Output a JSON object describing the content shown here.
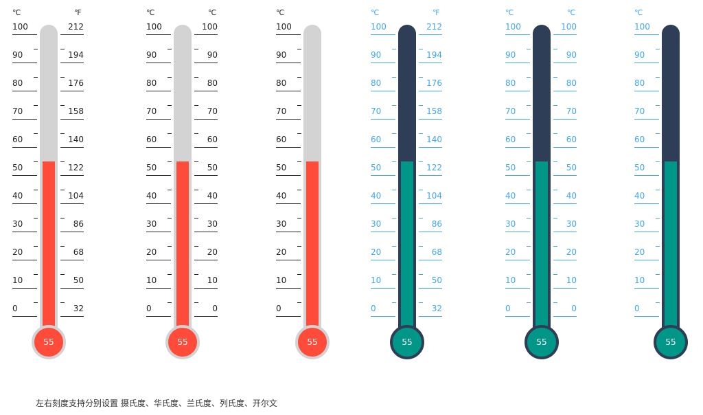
{
  "caption": "左右刻度支持分别设置 摄氏度、华氏度、兰氏度、列氏度、开尔文",
  "thermometers": [
    {
      "value": "55",
      "level_fraction": 0.55,
      "theme": "red",
      "left_unit": "℃",
      "right_unit": "℉",
      "left_ticks": [
        "100",
        "90",
        "80",
        "70",
        "60",
        "50",
        "40",
        "30",
        "20",
        "10",
        "0"
      ],
      "right_ticks": [
        "212",
        "194",
        "176",
        "158",
        "140",
        "122",
        "104",
        "86",
        "68",
        "50",
        "32"
      ]
    },
    {
      "value": "55",
      "level_fraction": 0.55,
      "theme": "red",
      "left_unit": "℃",
      "right_unit": "℃",
      "left_ticks": [
        "100",
        "90",
        "80",
        "70",
        "60",
        "50",
        "40",
        "30",
        "20",
        "10",
        "0"
      ],
      "right_ticks": [
        "100",
        "90",
        "80",
        "70",
        "60",
        "50",
        "40",
        "30",
        "20",
        "10",
        "0"
      ]
    },
    {
      "value": "55",
      "level_fraction": 0.55,
      "theme": "red",
      "left_unit": "℃",
      "right_unit": "",
      "left_ticks": [
        "100",
        "90",
        "80",
        "70",
        "60",
        "50",
        "40",
        "30",
        "20",
        "10",
        "0"
      ],
      "right_ticks": []
    },
    {
      "value": "55",
      "level_fraction": 0.55,
      "theme": "teal",
      "left_unit": "℃",
      "right_unit": "℉",
      "left_ticks": [
        "100",
        "90",
        "80",
        "70",
        "60",
        "50",
        "40",
        "30",
        "20",
        "10",
        "0"
      ],
      "right_ticks": [
        "212",
        "194",
        "176",
        "158",
        "140",
        "122",
        "104",
        "86",
        "68",
        "50",
        "32"
      ]
    },
    {
      "value": "55",
      "level_fraction": 0.55,
      "theme": "teal",
      "left_unit": "℃",
      "right_unit": "℃",
      "left_ticks": [
        "100",
        "90",
        "80",
        "70",
        "60",
        "50",
        "40",
        "30",
        "20",
        "10",
        "0"
      ],
      "right_ticks": [
        "100",
        "90",
        "80",
        "70",
        "60",
        "50",
        "40",
        "30",
        "20",
        "10",
        "0"
      ]
    },
    {
      "value": "55",
      "level_fraction": 0.55,
      "theme": "teal",
      "left_unit": "℃",
      "right_unit": "",
      "left_ticks": [
        "100",
        "90",
        "80",
        "70",
        "60",
        "50",
        "40",
        "30",
        "20",
        "10",
        "0"
      ],
      "right_ticks": []
    }
  ],
  "themes": {
    "red": {
      "fill": "#ff4b3a",
      "tube": "#d3d3d3",
      "bulb_border": "#d3d3d3",
      "text": "#222222",
      "line": "#222222"
    },
    "teal": {
      "fill": "#009688",
      "tube": "#2e3e56",
      "bulb_border": "#2e3e56",
      "text": "#42a5f5",
      "line": "#42a5f5"
    }
  }
}
